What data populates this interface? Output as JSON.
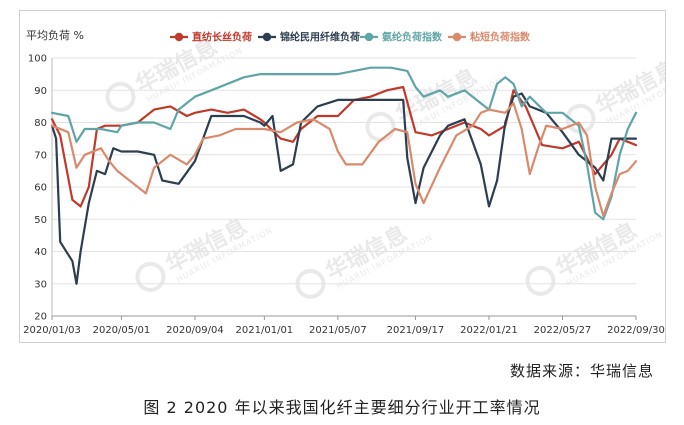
{
  "chart_data": {
    "type": "line",
    "title": "",
    "ylabel": "平均负荷 %",
    "xlabel": "",
    "ylim": [
      20,
      100
    ],
    "yticks": [
      20,
      30,
      40,
      50,
      60,
      70,
      80,
      90,
      100
    ],
    "xlim": [
      "2020/01/03",
      "2022/09/30"
    ],
    "xticks": [
      "2020/01/03",
      "2020/05/01",
      "2020/09/04",
      "2021/01/01",
      "2021/05/07",
      "2021/09/17",
      "2022/01/21",
      "2022/05/27",
      "2022/09/30"
    ],
    "grid": true,
    "legend_position": "top",
    "watermark": {
      "brand": "华瑞信息",
      "sub": "HUARUI INFORMATION"
    },
    "series": [
      {
        "name": "直纺长丝负荷",
        "color": "#c0392b",
        "values": [
          [
            "2020/01/03",
            81
          ],
          [
            "2020/01/17",
            76
          ],
          [
            "2020/02/07",
            56
          ],
          [
            "2020/02/21",
            54
          ],
          [
            "2020/03/06",
            60
          ],
          [
            "2020/03/20",
            78
          ],
          [
            "2020/04/03",
            79
          ],
          [
            "2020/05/01",
            79
          ],
          [
            "2020/05/29",
            80
          ],
          [
            "2020/06/26",
            84
          ],
          [
            "2020/07/24",
            85
          ],
          [
            "2020/08/21",
            82
          ],
          [
            "2020/09/04",
            83
          ],
          [
            "2020/10/02",
            84
          ],
          [
            "2020/10/30",
            83
          ],
          [
            "2020/11/27",
            84
          ],
          [
            "2020/12/25",
            81
          ],
          [
            "2021/01/01",
            80
          ],
          [
            "2021/01/29",
            75
          ],
          [
            "2021/02/19",
            74
          ],
          [
            "2021/03/05",
            78
          ],
          [
            "2021/04/02",
            82
          ],
          [
            "2021/05/07",
            82
          ],
          [
            "2021/06/04",
            87
          ],
          [
            "2021/07/02",
            88
          ],
          [
            "2021/07/30",
            90
          ],
          [
            "2021/08/27",
            91
          ],
          [
            "2021/09/17",
            77
          ],
          [
            "2021/10/15",
            76
          ],
          [
            "2021/11/12",
            78
          ],
          [
            "2021/12/10",
            80
          ],
          [
            "2022/01/07",
            78
          ],
          [
            "2022/01/21",
            76
          ],
          [
            "2022/02/18",
            79
          ],
          [
            "2022/03/04",
            90
          ],
          [
            "2022/03/25",
            85
          ],
          [
            "2022/04/22",
            73
          ],
          [
            "2022/05/27",
            72
          ],
          [
            "2022/06/24",
            74
          ],
          [
            "2022/07/22",
            64
          ],
          [
            "2022/08/19",
            70
          ],
          [
            "2022/09/02",
            75
          ],
          [
            "2022/09/16",
            74
          ],
          [
            "2022/09/30",
            73
          ]
        ]
      },
      {
        "name": "锦纶民用纤维负荷",
        "color": "#2c3e50",
        "values": [
          [
            "2020/01/03",
            79
          ],
          [
            "2020/01/10",
            75
          ],
          [
            "2020/01/17",
            43
          ],
          [
            "2020/02/07",
            37
          ],
          [
            "2020/02/14",
            30
          ],
          [
            "2020/02/21",
            40
          ],
          [
            "2020/03/06",
            55
          ],
          [
            "2020/03/20",
            65
          ],
          [
            "2020/04/03",
            64
          ],
          [
            "2020/04/17",
            72
          ],
          [
            "2020/05/01",
            71
          ],
          [
            "2020/05/29",
            71
          ],
          [
            "2020/06/26",
            70
          ],
          [
            "2020/07/10",
            62
          ],
          [
            "2020/08/07",
            61
          ],
          [
            "2020/09/04",
            68
          ],
          [
            "2020/10/02",
            82
          ],
          [
            "2020/10/30",
            82
          ],
          [
            "2020/11/27",
            82
          ],
          [
            "2020/12/25",
            80
          ],
          [
            "2021/01/01",
            79
          ],
          [
            "2021/01/15",
            82
          ],
          [
            "2021/01/29",
            65
          ],
          [
            "2021/02/19",
            67
          ],
          [
            "2021/03/05",
            80
          ],
          [
            "2021/04/02",
            85
          ],
          [
            "2021/05/07",
            87
          ],
          [
            "2021/06/04",
            87
          ],
          [
            "2021/07/02",
            87
          ],
          [
            "2021/07/30",
            87
          ],
          [
            "2021/08/27",
            87
          ],
          [
            "2021/09/03",
            69
          ],
          [
            "2021/09/17",
            55
          ],
          [
            "2021/10/01",
            66
          ],
          [
            "2021/10/29",
            76
          ],
          [
            "2021/11/12",
            79
          ],
          [
            "2021/12/10",
            81
          ],
          [
            "2022/01/07",
            67
          ],
          [
            "2022/01/21",
            54
          ],
          [
            "2022/02/04",
            62
          ],
          [
            "2022/02/18",
            80
          ],
          [
            "2022/03/04",
            88
          ],
          [
            "2022/03/18",
            89
          ],
          [
            "2022/04/01",
            85
          ],
          [
            "2022/04/29",
            83
          ],
          [
            "2022/05/27",
            77
          ],
          [
            "2022/06/24",
            70
          ],
          [
            "2022/07/22",
            66
          ],
          [
            "2022/08/05",
            62
          ],
          [
            "2022/08/19",
            75
          ],
          [
            "2022/09/02",
            75
          ],
          [
            "2022/09/30",
            75
          ]
        ]
      },
      {
        "name": "氨纶负荷指数",
        "color": "#5fa5a8",
        "values": [
          [
            "2020/01/03",
            83
          ],
          [
            "2020/01/31",
            82
          ],
          [
            "2020/02/14",
            74
          ],
          [
            "2020/02/28",
            78
          ],
          [
            "2020/03/27",
            78
          ],
          [
            "2020/04/24",
            77
          ],
          [
            "2020/05/01",
            79
          ],
          [
            "2020/05/29",
            80
          ],
          [
            "2020/06/26",
            80
          ],
          [
            "2020/07/24",
            78
          ],
          [
            "2020/08/07",
            84
          ],
          [
            "2020/09/04",
            88
          ],
          [
            "2020/10/02",
            90
          ],
          [
            "2020/10/30",
            92
          ],
          [
            "2020/11/27",
            94
          ],
          [
            "2020/12/25",
            95
          ],
          [
            "2021/01/01",
            95
          ],
          [
            "2021/02/26",
            95
          ],
          [
            "2021/04/02",
            95
          ],
          [
            "2021/05/07",
            95
          ],
          [
            "2021/06/04",
            96
          ],
          [
            "2021/07/02",
            97
          ],
          [
            "2021/08/06",
            97
          ],
          [
            "2021/09/03",
            96
          ],
          [
            "2021/09/17",
            91
          ],
          [
            "2021/10/01",
            88
          ],
          [
            "2021/10/29",
            90
          ],
          [
            "2021/11/12",
            88
          ],
          [
            "2021/12/10",
            90
          ],
          [
            "2022/01/07",
            86
          ],
          [
            "2022/01/21",
            84
          ],
          [
            "2022/02/04",
            92
          ],
          [
            "2022/02/18",
            94
          ],
          [
            "2022/03/04",
            92
          ],
          [
            "2022/03/18",
            85
          ],
          [
            "2022/04/01",
            88
          ],
          [
            "2022/04/29",
            83
          ],
          [
            "2022/05/27",
            83
          ],
          [
            "2022/06/24",
            79
          ],
          [
            "2022/07/08",
            67
          ],
          [
            "2022/07/22",
            52
          ],
          [
            "2022/08/05",
            50
          ],
          [
            "2022/08/19",
            57
          ],
          [
            "2022/09/02",
            70
          ],
          [
            "2022/09/16",
            78
          ],
          [
            "2022/09/30",
            83
          ]
        ]
      },
      {
        "name": "粘短负荷指数",
        "color": "#d98a6c",
        "values": [
          [
            "2020/01/03",
            79
          ],
          [
            "2020/01/31",
            77
          ],
          [
            "2020/02/14",
            66
          ],
          [
            "2020/02/28",
            70
          ],
          [
            "2020/03/27",
            72
          ],
          [
            "2020/04/10",
            68
          ],
          [
            "2020/04/24",
            65
          ],
          [
            "2020/05/01",
            64
          ],
          [
            "2020/05/29",
            60
          ],
          [
            "2020/06/12",
            58
          ],
          [
            "2020/06/26",
            66
          ],
          [
            "2020/07/24",
            70
          ],
          [
            "2020/08/21",
            67
          ],
          [
            "2020/09/04",
            70
          ],
          [
            "2020/09/18",
            75
          ],
          [
            "2020/10/16",
            76
          ],
          [
            "2020/11/13",
            78
          ],
          [
            "2020/12/11",
            78
          ],
          [
            "2021/01/01",
            78
          ],
          [
            "2021/01/29",
            77
          ],
          [
            "2021/02/26",
            80
          ],
          [
            "2021/03/26",
            81
          ],
          [
            "2021/04/23",
            78
          ],
          [
            "2021/05/07",
            71
          ],
          [
            "2021/05/21",
            67
          ],
          [
            "2021/06/18",
            67
          ],
          [
            "2021/07/16",
            74
          ],
          [
            "2021/08/13",
            78
          ],
          [
            "2021/09/03",
            77
          ],
          [
            "2021/09/17",
            61
          ],
          [
            "2021/10/01",
            55
          ],
          [
            "2021/10/29",
            66
          ],
          [
            "2021/11/26",
            76
          ],
          [
            "2021/12/24",
            79
          ],
          [
            "2022/01/07",
            83
          ],
          [
            "2022/01/21",
            84
          ],
          [
            "2022/02/18",
            83
          ],
          [
            "2022/03/04",
            86
          ],
          [
            "2022/03/18",
            78
          ],
          [
            "2022/04/01",
            64
          ],
          [
            "2022/04/15",
            72
          ],
          [
            "2022/04/29",
            79
          ],
          [
            "2022/05/27",
            78
          ],
          [
            "2022/06/24",
            80
          ],
          [
            "2022/07/08",
            76
          ],
          [
            "2022/07/22",
            60
          ],
          [
            "2022/08/05",
            51
          ],
          [
            "2022/08/19",
            58
          ],
          [
            "2022/09/02",
            64
          ],
          [
            "2022/09/16",
            65
          ],
          [
            "2022/09/30",
            68
          ]
        ]
      }
    ]
  },
  "footer": {
    "source": "数据来源：华瑞信息",
    "caption": "图 2  2020 年以来我国化纤主要细分行业开工率情况"
  }
}
